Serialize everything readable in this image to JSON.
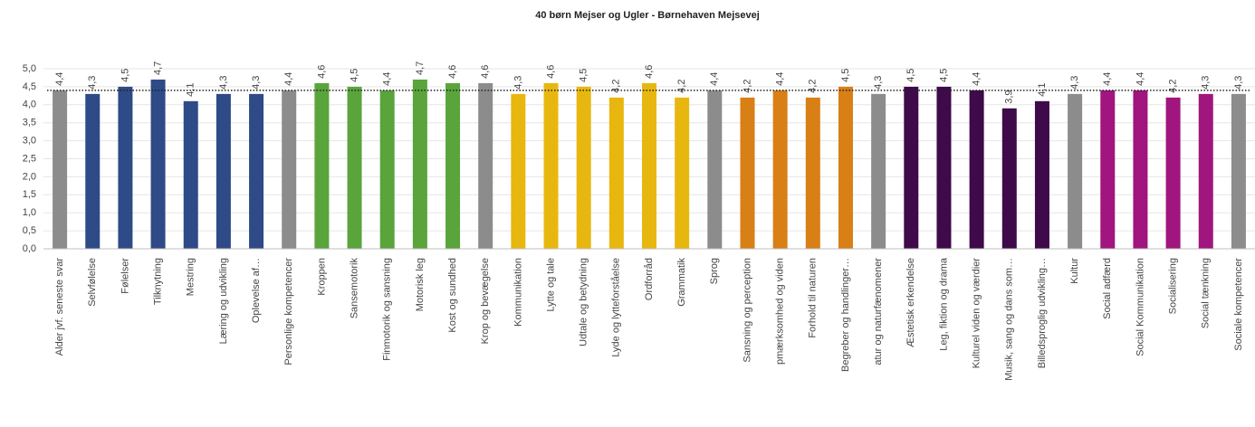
{
  "chart_data": {
    "type": "bar",
    "title": "40 børn Mejser og Ugler - Børnehaven Mejsevej",
    "categories": [
      "Alder jvf. seneste svar",
      "Selvfølelse",
      "Følelser",
      "Tilknytning",
      "Mestring",
      "Læring og udvikling",
      "Oplevelse af…",
      "Personlige kompetencer",
      "Kroppen",
      "Sansemotorik",
      "Finmotorik og sansning",
      "Motorisk leg",
      "Kost og sundhed",
      "Krop og bevægelse",
      "Kommunikation",
      "Lytte og tale",
      "Udtale og betydning",
      "Lyde og lytteforståelse",
      "Ordforråd",
      "Grammatik",
      "Sprog",
      "Sansning og perception",
      "pmærksomhed og viden",
      "Forhold til naturen",
      "Begreber og handlinger…",
      "atur og naturfænomener",
      "Æstetisk erkendelse",
      "Leg, fiktion og drama",
      "Kulturel viden og værdier",
      "Musik, sang og dans som…",
      "Billedsproglig udvikling…",
      "Kultur",
      "Social adfærd",
      "Social Kommunikation",
      "Socialisering",
      "Social tænkning",
      "Sociale kompetencer"
    ],
    "values": [
      4.4,
      4.3,
      4.5,
      4.7,
      4.1,
      4.3,
      4.3,
      4.4,
      4.6,
      4.5,
      4.4,
      4.7,
      4.6,
      4.6,
      4.3,
      4.6,
      4.5,
      4.2,
      4.6,
      4.2,
      4.4,
      4.2,
      4.4,
      4.2,
      4.5,
      4.3,
      4.5,
      4.5,
      4.4,
      3.9,
      4.1,
      4.3,
      4.4,
      4.4,
      4.2,
      4.3,
      4.3
    ],
    "value_labels": [
      "4,4",
      "4,3",
      "4,5",
      "4,7",
      "4,1",
      "4,3",
      "4,3",
      "4,4",
      "4,6",
      "4,5",
      "4,4",
      "4,7",
      "4,6",
      "4,6",
      "4,3",
      "4,6",
      "4,5",
      "4,2",
      "4,6",
      "4,2",
      "4,4",
      "4,2",
      "4,4",
      "4,2",
      "4,5",
      "4,3",
      "4,5",
      "4,5",
      "4,4",
      "3,9",
      "4,1",
      "4,3",
      "4,4",
      "4,4",
      "4,2",
      "4,3",
      "4,3"
    ],
    "colors": [
      "#8c8c8c",
      "#2e4a87",
      "#2e4a87",
      "#2e4a87",
      "#2e4a87",
      "#2e4a87",
      "#2e4a87",
      "#8c8c8c",
      "#5aa43c",
      "#5aa43c",
      "#5aa43c",
      "#5aa43c",
      "#5aa43c",
      "#8c8c8c",
      "#e8b70f",
      "#e8b70f",
      "#e8b70f",
      "#e8b70f",
      "#e8b70f",
      "#e8b70f",
      "#8c8c8c",
      "#d87f16",
      "#d87f16",
      "#d87f16",
      "#d87f16",
      "#8c8c8c",
      "#3e0a4a",
      "#3e0a4a",
      "#3e0a4a",
      "#3e0a4a",
      "#3e0a4a",
      "#8c8c8c",
      "#a0157e",
      "#a0157e",
      "#a0157e",
      "#a0157e",
      "#8c8c8c"
    ],
    "reference_line": 4.4,
    "ylim": [
      0,
      5
    ],
    "yticks": [
      {
        "value": 0,
        "label": "0,0"
      },
      {
        "value": 0.5,
        "label": "0,5"
      },
      {
        "value": 1,
        "label": "1,0"
      },
      {
        "value": 1.5,
        "label": "1,5"
      },
      {
        "value": 2,
        "label": "2,0"
      },
      {
        "value": 2.5,
        "label": "2,5"
      },
      {
        "value": 3,
        "label": "3,0"
      },
      {
        "value": 3.5,
        "label": "3,5"
      },
      {
        "value": 4,
        "label": "4,0"
      },
      {
        "value": 4.5,
        "label": "4,5"
      },
      {
        "value": 5,
        "label": "5,0"
      }
    ],
    "grid": true
  }
}
